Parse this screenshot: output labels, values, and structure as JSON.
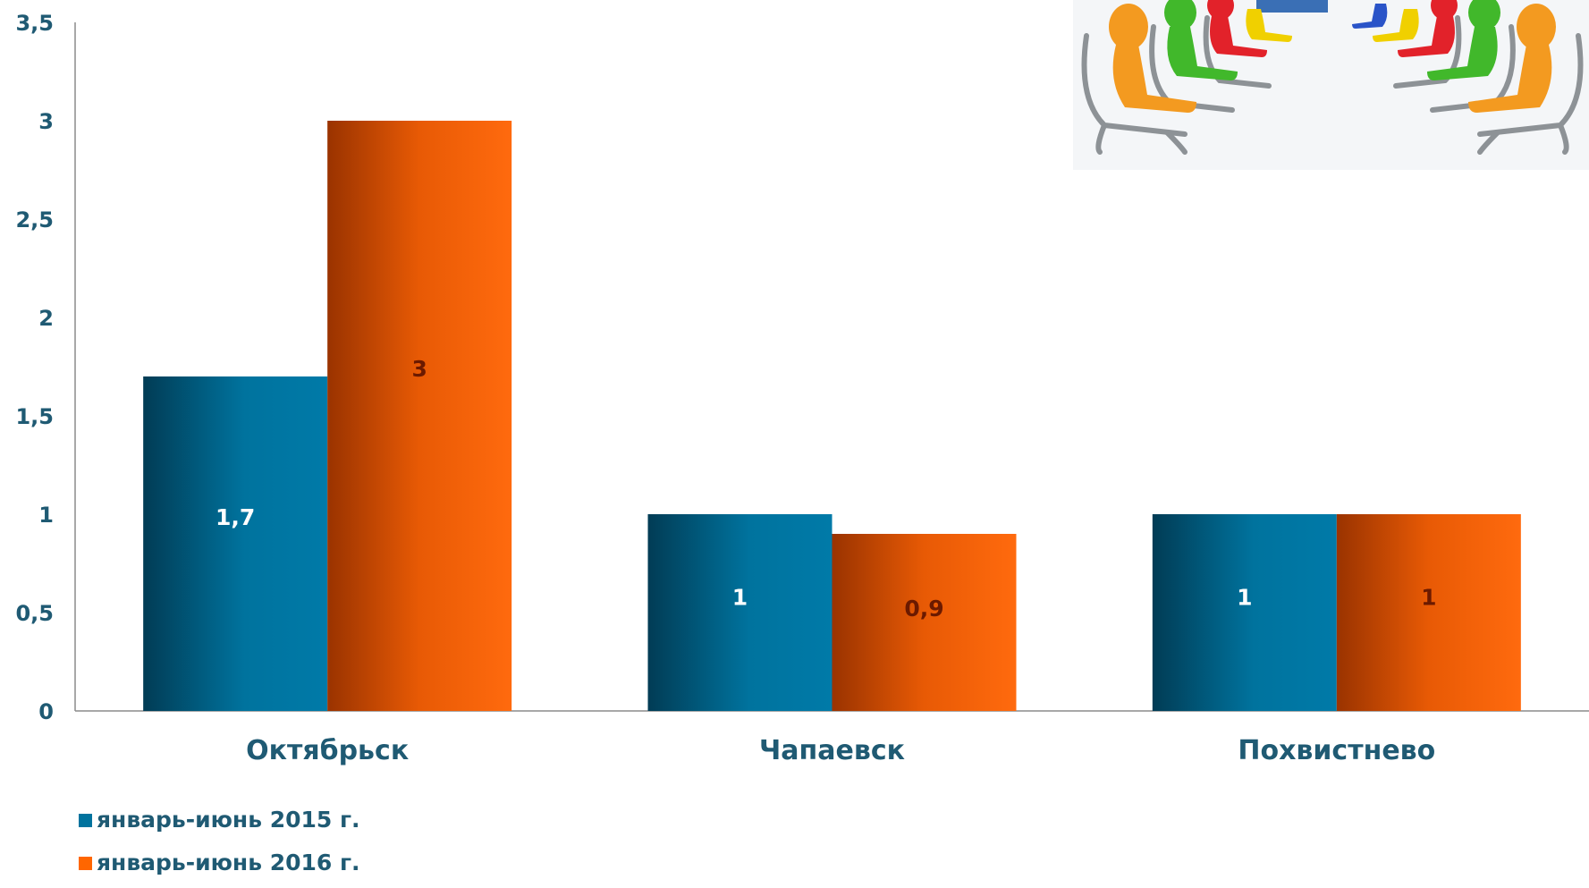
{
  "chart_data": {
    "type": "bar",
    "title": "",
    "xlabel": "",
    "ylabel": "",
    "categories": [
      "Октябрьск",
      "Чапаевск",
      "Похвистнево"
    ],
    "series": [
      {
        "name": "январь-июнь 2015 г.",
        "values": [
          1.7,
          1,
          1
        ],
        "labels": [
          "1,7",
          "1",
          "1"
        ],
        "color": "#00739e"
      },
      {
        "name": "январь-июнь 2016 г.",
        "values": [
          3,
          0.9,
          1
        ],
        "labels": [
          "3",
          "0,9",
          "1"
        ],
        "color": "#ff6600"
      }
    ],
    "ylim": [
      0,
      3.5
    ],
    "yticks": [
      "0",
      "0,5",
      "1",
      "1,5",
      "2",
      "2,5",
      "3",
      "3,5"
    ],
    "grid": false,
    "legend_position": "bottom-left"
  },
  "colors": {
    "text": "#1f5a73",
    "axis": "#8c8c8c",
    "label_dark_series": "#ffffff",
    "label_orange_series": "#6b1a00"
  },
  "illustration": {
    "icon": "meeting-people-chairs-icon"
  }
}
